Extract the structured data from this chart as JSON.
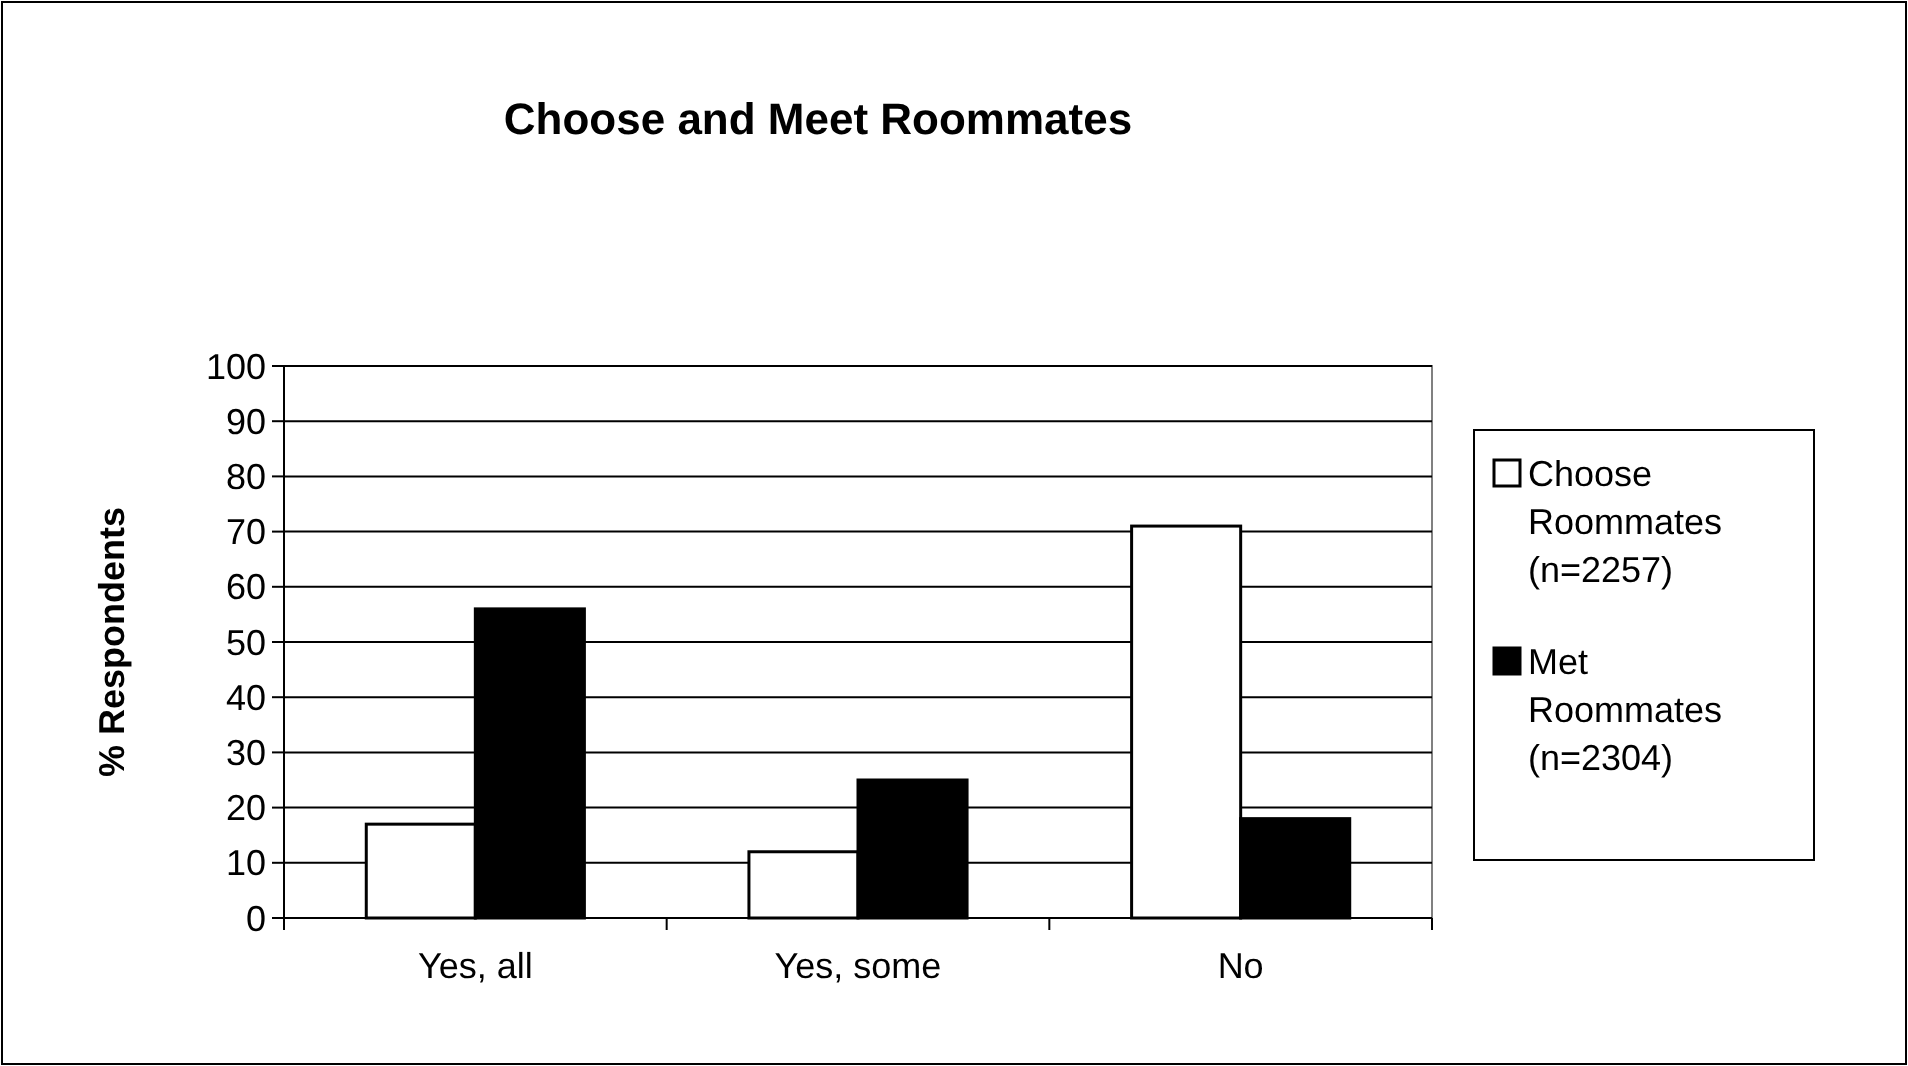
{
  "chart_data": {
    "type": "bar",
    "title": "Choose and Meet Roommates",
    "ylabel": "% Respondents",
    "categories": [
      "Yes, all",
      "Yes, some",
      "No"
    ],
    "series": [
      {
        "name": "Choose Roommates (n=2257)",
        "color": "#ffffff",
        "values": [
          17,
          12,
          71
        ]
      },
      {
        "name": "Met Roommates (n=2304)",
        "color": "#000000",
        "values": [
          56,
          25,
          18
        ]
      }
    ],
    "ylim": [
      0,
      100
    ],
    "yticks": [
      0,
      10,
      20,
      30,
      40,
      50,
      60,
      70,
      80,
      90,
      100
    ],
    "grid": "y",
    "legend": "right"
  }
}
